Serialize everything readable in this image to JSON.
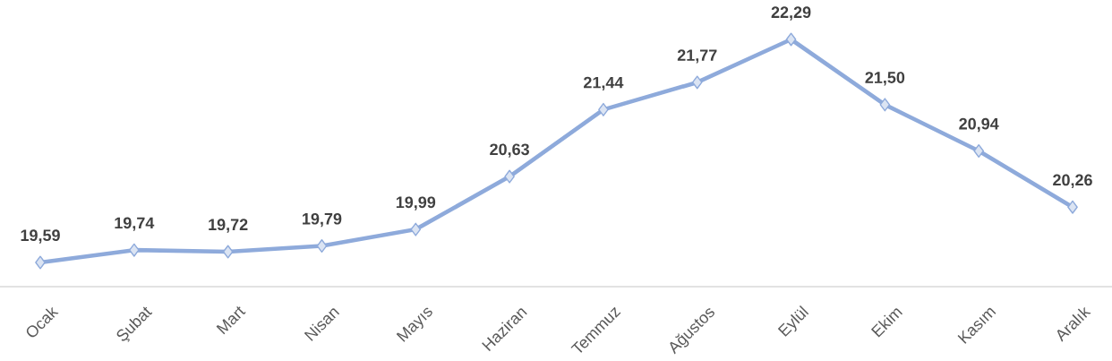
{
  "chart_data": {
    "type": "line",
    "categories": [
      "Ocak",
      "Şubat",
      "Mart",
      "Nisan",
      "Mayıs",
      "Haziran",
      "Temmuz",
      "Ağustos",
      "Eylül",
      "Ekim",
      "Kasım",
      "Aralık"
    ],
    "series": [
      {
        "color": "#8eaadb",
        "values": [
          19.59,
          19.74,
          19.72,
          19.79,
          19.99,
          20.63,
          21.44,
          21.77,
          22.29,
          21.5,
          20.94,
          20.26
        ],
        "value_labels": [
          "19,59",
          "19,74",
          "19,72",
          "19,79",
          "19,99",
          "20,63",
          "21,44",
          "21,77",
          "22,29",
          "21,50",
          "20,94",
          "20,26"
        ]
      }
    ],
    "marker": "diamond",
    "line_style": "solid"
  }
}
